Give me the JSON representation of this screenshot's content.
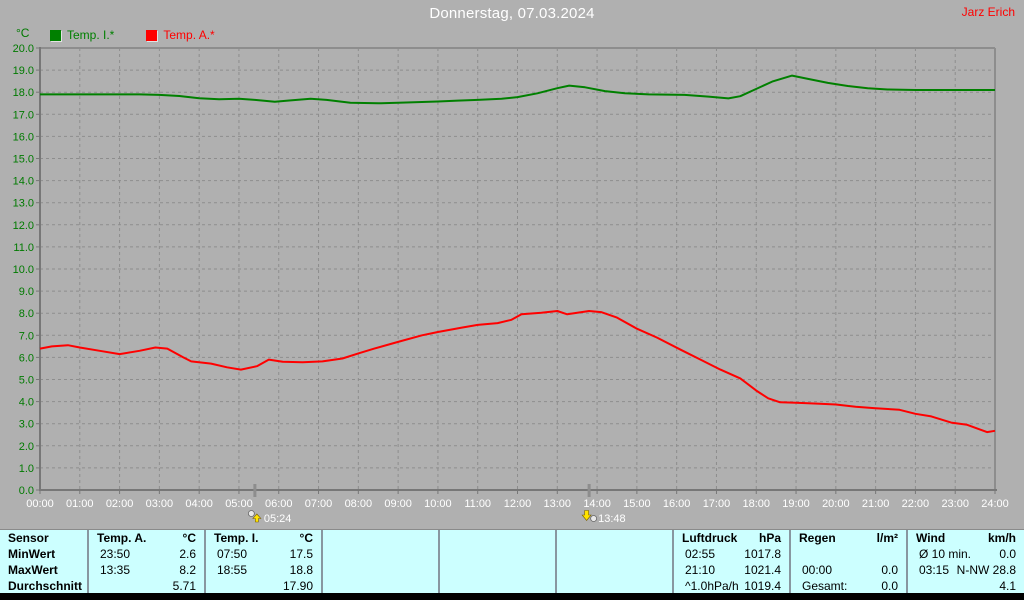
{
  "header": {
    "title": "Donnerstag, 07.03.2024",
    "user": "Jarz Erich"
  },
  "chart_data": {
    "type": "line",
    "title": "Donnerstag, 07.03.2024",
    "unit_label": "°C",
    "xlabel": "",
    "ylabel": "°C",
    "ylim": [
      0,
      20
    ],
    "ytick_step": 1.0,
    "xlim_hours": [
      0,
      24
    ],
    "grid": true,
    "legend_position": "top-left",
    "yticks": [
      "20.0",
      "19.0",
      "18.0",
      "17.0",
      "16.0",
      "15.0",
      "14.0",
      "13.0",
      "12.0",
      "11.0",
      "10.0",
      "9.0",
      "8.0",
      "7.0",
      "6.0",
      "5.0",
      "4.0",
      "3.0",
      "2.0",
      "1.0",
      "0.0"
    ],
    "xticks": [
      "00:00",
      "01:00",
      "02:00",
      "03:00",
      "04:00",
      "05:00",
      "06:00",
      "07:00",
      "08:00",
      "09:00",
      "10:00",
      "11:00",
      "12:00",
      "13:00",
      "14:00",
      "15:00",
      "16:00",
      "17:00",
      "18:00",
      "19:00",
      "20:00",
      "21:00",
      "22:00",
      "23:00",
      "24:00"
    ],
    "legend": [
      {
        "label": "Temp. I.*",
        "color": "#008000"
      },
      {
        "label": "Temp. A.*",
        "color": "#ff0000"
      }
    ],
    "series": [
      {
        "name": "Temp. I.*",
        "color": "#008000",
        "points": [
          [
            0,
            17.9
          ],
          [
            0.5,
            17.9
          ],
          [
            1,
            17.9
          ],
          [
            1.5,
            17.9
          ],
          [
            2,
            17.9
          ],
          [
            2.5,
            17.9
          ],
          [
            3,
            17.88
          ],
          [
            3.5,
            17.83
          ],
          [
            4,
            17.73
          ],
          [
            4.5,
            17.68
          ],
          [
            5,
            17.7
          ],
          [
            5.4,
            17.65
          ],
          [
            5.9,
            17.57
          ],
          [
            6.3,
            17.63
          ],
          [
            6.8,
            17.7
          ],
          [
            7.2,
            17.65
          ],
          [
            7.8,
            17.52
          ],
          [
            8.5,
            17.5
          ],
          [
            9,
            17.52
          ],
          [
            9.5,
            17.55
          ],
          [
            10,
            17.58
          ],
          [
            10.5,
            17.62
          ],
          [
            11,
            17.65
          ],
          [
            11.6,
            17.7
          ],
          [
            12,
            17.78
          ],
          [
            12.5,
            17.95
          ],
          [
            13,
            18.18
          ],
          [
            13.3,
            18.3
          ],
          [
            13.7,
            18.22
          ],
          [
            14.2,
            18.05
          ],
          [
            14.7,
            17.95
          ],
          [
            15.3,
            17.9
          ],
          [
            16.2,
            17.88
          ],
          [
            16.8,
            17.8
          ],
          [
            17.3,
            17.72
          ],
          [
            17.6,
            17.82
          ],
          [
            18,
            18.15
          ],
          [
            18.4,
            18.48
          ],
          [
            18.9,
            18.75
          ],
          [
            19.3,
            18.6
          ],
          [
            19.8,
            18.42
          ],
          [
            20.3,
            18.28
          ],
          [
            20.8,
            18.18
          ],
          [
            21.3,
            18.12
          ],
          [
            22,
            18.1
          ],
          [
            23,
            18.1
          ],
          [
            24,
            18.1
          ]
        ]
      },
      {
        "name": "Temp. A.*",
        "color": "#ff0000",
        "points": [
          [
            0,
            6.4
          ],
          [
            0.3,
            6.5
          ],
          [
            0.7,
            6.55
          ],
          [
            1,
            6.45
          ],
          [
            1.5,
            6.3
          ],
          [
            2,
            6.15
          ],
          [
            2.5,
            6.3
          ],
          [
            2.9,
            6.45
          ],
          [
            3.2,
            6.4
          ],
          [
            3.6,
            6.0
          ],
          [
            3.8,
            5.82
          ],
          [
            4.3,
            5.72
          ],
          [
            4.7,
            5.55
          ],
          [
            5.05,
            5.45
          ],
          [
            5.45,
            5.6
          ],
          [
            5.75,
            5.9
          ],
          [
            6.1,
            5.8
          ],
          [
            6.6,
            5.78
          ],
          [
            7.1,
            5.82
          ],
          [
            7.6,
            5.95
          ],
          [
            8,
            6.18
          ],
          [
            8.4,
            6.4
          ],
          [
            9,
            6.7
          ],
          [
            9.6,
            7.0
          ],
          [
            10,
            7.15
          ],
          [
            10.6,
            7.35
          ],
          [
            11,
            7.47
          ],
          [
            11.5,
            7.55
          ],
          [
            11.85,
            7.7
          ],
          [
            12.1,
            7.95
          ],
          [
            12.6,
            8.02
          ],
          [
            13,
            8.1
          ],
          [
            13.25,
            7.95
          ],
          [
            13.8,
            8.1
          ],
          [
            14.1,
            8.05
          ],
          [
            14.5,
            7.8
          ],
          [
            15,
            7.3
          ],
          [
            15.5,
            6.9
          ],
          [
            16.1,
            6.35
          ],
          [
            16.6,
            5.9
          ],
          [
            17.1,
            5.45
          ],
          [
            17.6,
            5.05
          ],
          [
            18,
            4.5
          ],
          [
            18.3,
            4.15
          ],
          [
            18.6,
            3.97
          ],
          [
            19,
            3.95
          ],
          [
            19.6,
            3.9
          ],
          [
            20,
            3.87
          ],
          [
            20.5,
            3.77
          ],
          [
            21,
            3.7
          ],
          [
            21.6,
            3.63
          ],
          [
            22,
            3.45
          ],
          [
            22.4,
            3.33
          ],
          [
            22.9,
            3.05
          ],
          [
            23.3,
            2.95
          ],
          [
            23.8,
            2.62
          ],
          [
            24,
            2.68
          ]
        ]
      }
    ],
    "markers": [
      {
        "label": "05:24",
        "hour": 5.4,
        "icon": "sunrise-icon"
      },
      {
        "label": "13:48",
        "hour": 13.8,
        "icon": "sunset-icon"
      }
    ]
  },
  "table": {
    "row_labels": [
      "Sensor",
      "MinWert",
      "MaxWert",
      "Durchschnitt"
    ],
    "groups": [
      {
        "name": "temp-a",
        "header": [
          "Temp. A.",
          "°C"
        ],
        "rows": [
          [
            "23:50",
            "2.6"
          ],
          [
            "13:35",
            "8.2"
          ],
          [
            "",
            "5.71"
          ]
        ]
      },
      {
        "name": "temp-i",
        "header": [
          "Temp. I.",
          "°C"
        ],
        "rows": [
          [
            "07:50",
            "17.5"
          ],
          [
            "18:55",
            "18.8"
          ],
          [
            "",
            "17.90"
          ]
        ]
      },
      {
        "name": "empty-1",
        "header": [
          "",
          ""
        ],
        "rows": [
          [
            "",
            ""
          ],
          [
            "",
            ""
          ],
          [
            "",
            ""
          ]
        ]
      },
      {
        "name": "empty-2",
        "header": [
          "",
          ""
        ],
        "rows": [
          [
            "",
            ""
          ],
          [
            "",
            ""
          ],
          [
            "",
            ""
          ]
        ]
      },
      {
        "name": "empty-3",
        "header": [
          "",
          ""
        ],
        "rows": [
          [
            "",
            ""
          ],
          [
            "",
            ""
          ],
          [
            "",
            ""
          ]
        ]
      },
      {
        "name": "luftdruck",
        "header": [
          "Luftdruck",
          "hPa"
        ],
        "rows": [
          [
            "02:55",
            "1017.8"
          ],
          [
            "21:10",
            "1021.4"
          ],
          [
            "^1.0hPa/h",
            "1019.4"
          ]
        ]
      },
      {
        "name": "regen",
        "header": [
          "Regen",
          "l/m²"
        ],
        "rows": [
          [
            "",
            ""
          ],
          [
            "00:00",
            "0.0"
          ],
          [
            "Gesamt:",
            "0.0"
          ]
        ]
      },
      {
        "name": "wind",
        "header": [
          "Wind",
          "km/h"
        ],
        "rows": [
          [
            "Ø 10 min.",
            "0.0"
          ],
          [
            "03:15",
            "N-NW 28.8"
          ],
          [
            "",
            "4.1"
          ]
        ]
      }
    ]
  },
  "colors": {
    "background": "#b0b0b0",
    "grid": "#8d8d8d",
    "axis": "#777777",
    "temp_i_green": "#008000",
    "temp_a_red": "#ff0000",
    "ytick_green": "#007a00",
    "xtick_white": "#ffffff",
    "table_background": "#ccffff",
    "table_separator": "#8897a0",
    "marker_yellow": "#ffe400"
  }
}
